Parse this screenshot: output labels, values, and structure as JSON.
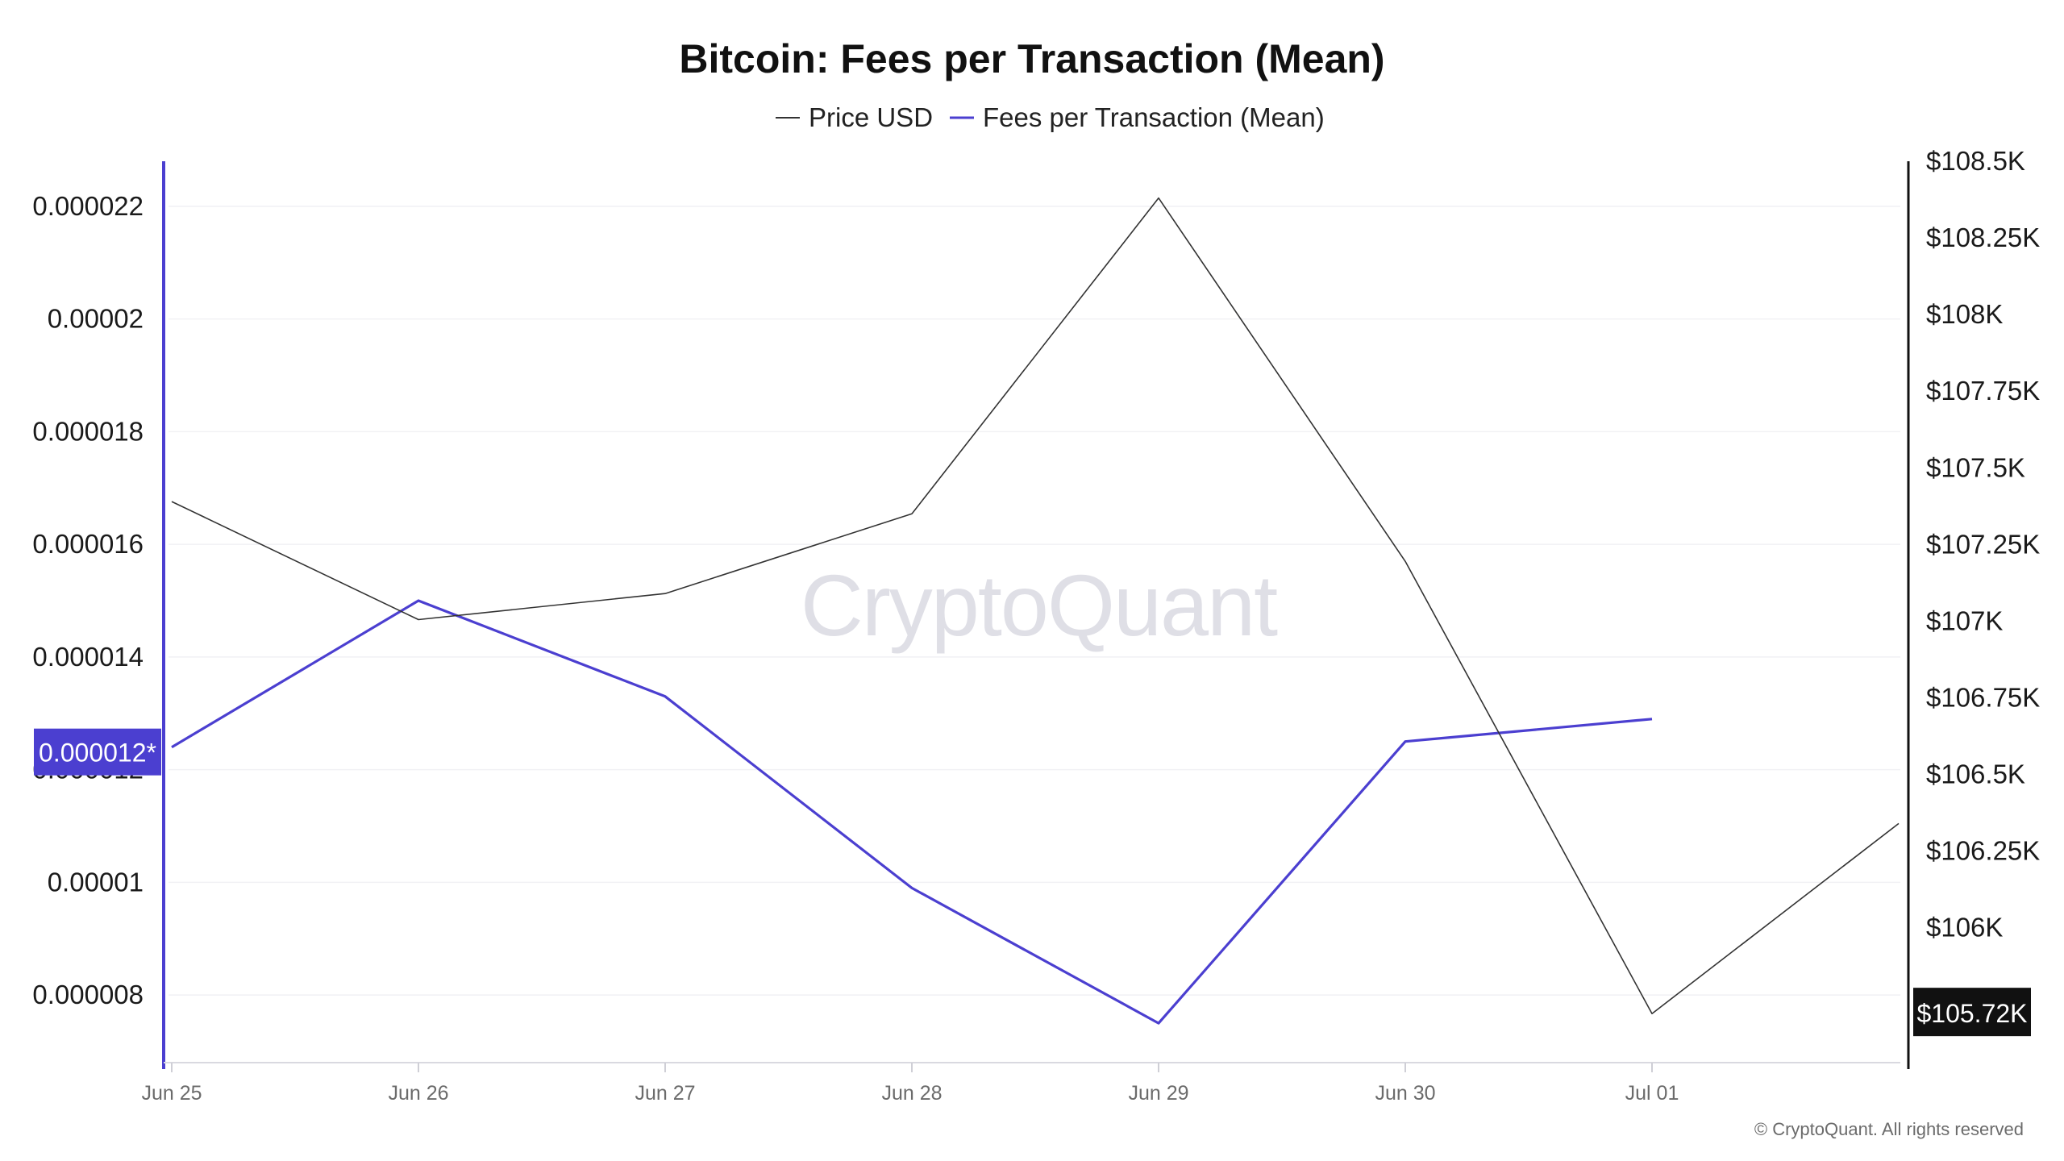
{
  "chart_data": {
    "type": "line",
    "title": "Bitcoin: Fees per Transaction (Mean)",
    "categories": [
      "Jun 25",
      "Jun 26",
      "Jun 27",
      "Jun 28",
      "Jun 29",
      "Jun 30",
      "Jul 01"
    ],
    "legend": {
      "placement": "top-center",
      "items": [
        {
          "label": "Price USD",
          "color": "#333333"
        },
        {
          "label": "Fees per Transaction (Mean)",
          "color": "#4b3fd0"
        }
      ]
    },
    "series": [
      {
        "name": "Fees per Transaction (Mean)",
        "axis": "left",
        "color": "#4b3fd0",
        "x": [
          0,
          1,
          2,
          3,
          4,
          5,
          6
        ],
        "values": [
          1.24e-05,
          1.5e-05,
          1.33e-05,
          9.9e-06,
          7.5e-06,
          1.25e-05,
          1.29e-05
        ]
      },
      {
        "name": "Price USD",
        "axis": "right",
        "color": "#333333",
        "x": [
          0,
          1,
          2,
          3,
          4,
          5,
          6,
          7
        ],
        "values": [
          107390,
          107005,
          107090,
          107350,
          108380,
          107195,
          105720,
          106340
        ]
      }
    ],
    "left_axis": {
      "ticks": [
        "0.000008",
        "0.00001",
        "0.000012",
        "0.000014",
        "0.000016",
        "0.000018",
        "0.00002",
        "0.000022"
      ],
      "tick_values": [
        8e-06,
        1e-05,
        1.2e-05,
        1.4e-05,
        1.6e-05,
        1.8e-05,
        2e-05,
        2.2e-05
      ],
      "range": [
        6.8e-06,
        2.28e-05
      ],
      "color": "#4b3fd0",
      "badge": "0.000012*"
    },
    "right_axis": {
      "ticks": [
        "$106K",
        "$106.25K",
        "$106.5K",
        "$106.75K",
        "$107K",
        "$107.25K",
        "$107.5K",
        "$107.75K",
        "$108K",
        "$108.25K",
        "$108.5K"
      ],
      "tick_values": [
        106000,
        106250,
        106500,
        106750,
        107000,
        107250,
        107500,
        107750,
        108000,
        108250,
        108500
      ],
      "range": [
        105560,
        108500
      ],
      "color": "#111111",
      "badge": "$105.72K"
    },
    "grid": true,
    "watermark": "CryptoQuant",
    "copyright": "© CryptoQuant. All rights reserved"
  }
}
